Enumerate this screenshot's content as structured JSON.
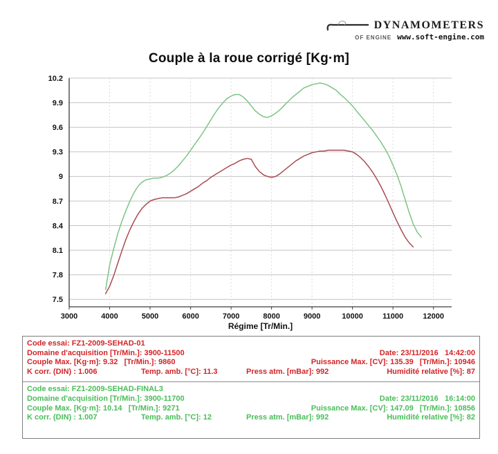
{
  "header": {
    "brand": "DYNAMOMETERS",
    "logo_mark": "OF ENGINE",
    "website": "www.soft-engine.com"
  },
  "chart_data": {
    "type": "line",
    "title": "Couple à la roue corrigé [Kg·m]",
    "xlabel": "Régime [Tr/Min.]",
    "ylabel": "",
    "xlim": [
      3000,
      12450
    ],
    "ylim": [
      7.41,
      10.2
    ],
    "xticks": [
      3000,
      4000,
      5000,
      6000,
      7000,
      8000,
      9000,
      10000,
      11000,
      12000
    ],
    "yticks": [
      7.5,
      7.8,
      8.1,
      8.4,
      8.7,
      9,
      9.3,
      9.6,
      9.9,
      10.2
    ],
    "grid": true,
    "legend_position": "none",
    "series": [
      {
        "name": "FZ1-2009-SEHAD-01",
        "color": "#a94a52",
        "x": [
          3900,
          4000,
          4100,
          4200,
          4300,
          4400,
          4500,
          4600,
          4700,
          4800,
          4900,
          5000,
          5100,
          5200,
          5300,
          5400,
          5500,
          5600,
          5700,
          5800,
          5900,
          6000,
          6100,
          6200,
          6300,
          6400,
          6500,
          6600,
          6700,
          6800,
          6900,
          7000,
          7100,
          7200,
          7300,
          7400,
          7500,
          7600,
          7700,
          7800,
          7900,
          8000,
          8100,
          8200,
          8300,
          8400,
          8500,
          8600,
          8700,
          8800,
          8900,
          9000,
          9100,
          9200,
          9300,
          9400,
          9500,
          9600,
          9700,
          9800,
          9900,
          10000,
          10100,
          10200,
          10300,
          10400,
          10500,
          10600,
          10700,
          10800,
          10900,
          11000,
          11100,
          11200,
          11300,
          11400,
          11500
        ],
        "y": [
          7.57,
          7.66,
          7.79,
          7.94,
          8.09,
          8.23,
          8.35,
          8.45,
          8.54,
          8.61,
          8.66,
          8.7,
          8.72,
          8.73,
          8.74,
          8.74,
          8.74,
          8.74,
          8.75,
          8.77,
          8.79,
          8.82,
          8.85,
          8.88,
          8.92,
          8.95,
          8.99,
          9.02,
          9.05,
          9.08,
          9.11,
          9.14,
          9.16,
          9.19,
          9.21,
          9.22,
          9.21,
          9.12,
          9.06,
          9.02,
          9.0,
          8.99,
          9.0,
          9.03,
          9.07,
          9.11,
          9.15,
          9.19,
          9.22,
          9.25,
          9.27,
          9.29,
          9.3,
          9.31,
          9.31,
          9.32,
          9.32,
          9.32,
          9.32,
          9.32,
          9.31,
          9.3,
          9.27,
          9.23,
          9.18,
          9.12,
          9.05,
          8.97,
          8.88,
          8.78,
          8.67,
          8.56,
          8.45,
          8.35,
          8.26,
          8.19,
          8.14
        ]
      },
      {
        "name": "FZ1-2009-SEHAD-FINAL3",
        "color": "#7cc483",
        "x": [
          3900,
          4000,
          4100,
          4200,
          4300,
          4400,
          4500,
          4600,
          4700,
          4800,
          4900,
          5000,
          5100,
          5200,
          5300,
          5400,
          5500,
          5600,
          5700,
          5800,
          5900,
          6000,
          6100,
          6200,
          6300,
          6400,
          6500,
          6600,
          6700,
          6800,
          6900,
          7000,
          7100,
          7200,
          7300,
          7400,
          7500,
          7600,
          7700,
          7800,
          7900,
          8000,
          8100,
          8200,
          8300,
          8400,
          8500,
          8600,
          8700,
          8800,
          8900,
          9000,
          9100,
          9200,
          9300,
          9400,
          9500,
          9600,
          9700,
          9800,
          9900,
          10000,
          10100,
          10200,
          10300,
          10400,
          10500,
          10600,
          10700,
          10800,
          10900,
          11000,
          11100,
          11200,
          11300,
          11400,
          11500,
          11600,
          11700
        ],
        "y": [
          7.62,
          7.92,
          8.12,
          8.3,
          8.45,
          8.58,
          8.7,
          8.8,
          8.88,
          8.93,
          8.96,
          8.97,
          8.98,
          8.98,
          8.99,
          9.01,
          9.04,
          9.08,
          9.13,
          9.19,
          9.25,
          9.32,
          9.39,
          9.46,
          9.53,
          9.61,
          9.69,
          9.77,
          9.84,
          9.9,
          9.95,
          9.98,
          10.0,
          10.0,
          9.97,
          9.92,
          9.86,
          9.8,
          9.76,
          9.73,
          9.72,
          9.74,
          9.77,
          9.81,
          9.86,
          9.91,
          9.96,
          10.0,
          10.04,
          10.08,
          10.1,
          10.12,
          10.13,
          10.14,
          10.13,
          10.11,
          10.08,
          10.05,
          10.0,
          9.96,
          9.91,
          9.86,
          9.8,
          9.74,
          9.68,
          9.62,
          9.56,
          9.49,
          9.42,
          9.34,
          9.25,
          9.14,
          9.02,
          8.88,
          8.72,
          8.56,
          8.42,
          8.32,
          8.26
        ]
      }
    ]
  },
  "results": {
    "tests": [
      {
        "text_color": "#d22427",
        "code": "Code essai: FZ1-2009-SEHAD-01",
        "domain": "Domaine d'acquisition [Tr/Min.]: 3900-11500",
        "date": "Date: 23/11/2016   14:42:00",
        "torque_max": "Couple Max. [Kg·m]: 9.32   [Tr/Min.]: 9860",
        "power_max": "Puissance Max. [CV]: 135.39   [Tr/Min.]: 10946",
        "k_corr": "K corr. (DIN) : 1.006",
        "temp": "Temp. amb. [°C]: 11.3",
        "pressure": "Press atm. [mBar]: 992",
        "humidity": "Humidité relative [%]: 87"
      },
      {
        "text_color": "#49bd58",
        "code": "Code essai: FZ1-2009-SEHAD-FINAL3",
        "domain": "Domaine d'acquisition [Tr/Min.]: 3900-11700",
        "date": "Date: 23/11/2016   16:14:00",
        "torque_max": "Couple Max. [Kg·m]: 10.14   [Tr/Min.]: 9271",
        "power_max": "Puissance Max. [CV]: 147.09   [Tr/Min.]: 10856",
        "k_corr": "K corr. (DIN) : 1.007",
        "temp": "Temp. amb. [°C]: 12",
        "pressure": "Press atm. [mBar]: 992",
        "humidity": "Humidité relative [%]: 82"
      }
    ]
  }
}
